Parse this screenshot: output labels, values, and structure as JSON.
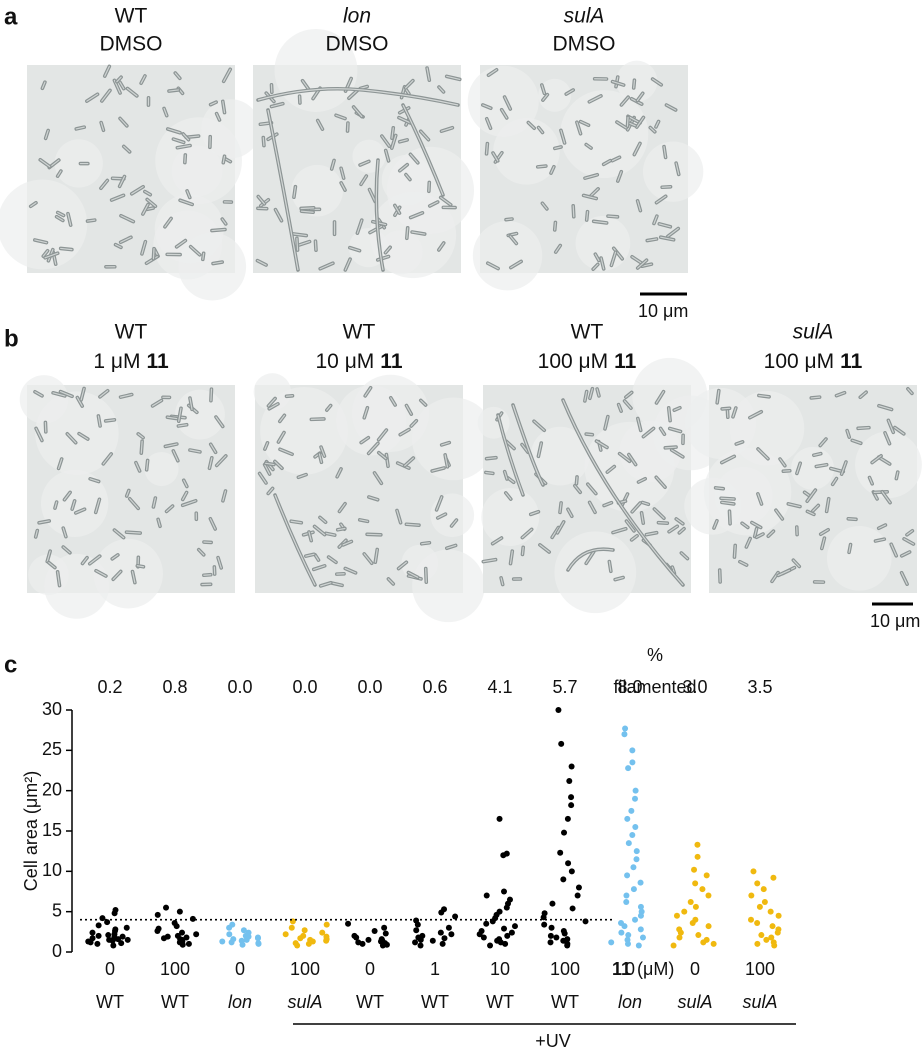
{
  "panel_a": {
    "letter": "a",
    "images": [
      {
        "strain": "WT",
        "strain_color": "#111111",
        "italic": false,
        "treatment": "DMSO"
      },
      {
        "strain": "lon",
        "strain_color": "#6ec3f0",
        "italic": true,
        "treatment": "DMSO"
      },
      {
        "strain": "sulA",
        "strain_color": "#f0b90f",
        "italic": true,
        "treatment": "DMSO"
      }
    ],
    "scale_bar": "10 μm"
  },
  "panel_b": {
    "letter": "b",
    "images": [
      {
        "strain": "WT",
        "strain_color": "#111111",
        "italic": false,
        "conc": "1 μM",
        "compound": "11"
      },
      {
        "strain": "WT",
        "strain_color": "#111111",
        "italic": false,
        "conc": "10 μM",
        "compound": "11"
      },
      {
        "strain": "WT",
        "strain_color": "#111111",
        "italic": false,
        "conc": "100 μM",
        "compound": "11"
      },
      {
        "strain": "sulA",
        "strain_color": "#f0b90f",
        "italic": true,
        "conc": "100 μM",
        "compound": "11"
      }
    ],
    "scale_bar": "10 μm"
  },
  "panel_c": {
    "letter": "c",
    "chart_data": {
      "type": "strip",
      "ylabel": "Cell area (μm²)",
      "ylim": [
        0,
        30
      ],
      "yticks": [
        0,
        5,
        10,
        15,
        20,
        25,
        30
      ],
      "threshold": 4,
      "filamented": {
        "label": [
          "%",
          "filamented"
        ],
        "values": [
          0.2,
          0.8,
          0,
          0,
          0,
          0.6,
          4.1,
          5.7,
          8.0,
          3.0,
          3.5
        ],
        "value_labels": [
          "0.2",
          "0.8",
          "0.0",
          "0.0",
          "0.0",
          "0.6",
          "4.1",
          "5.7",
          "8.0",
          "3.0",
          "3.5"
        ]
      },
      "x_label": {
        "compound": "11",
        "unit": "(μM)"
      },
      "uv_label": "+UV",
      "groups": [
        {
          "dose": "0",
          "strain": "WT",
          "color": "#000000",
          "italic": false,
          "values": [
            0.8,
            1.0,
            1.1,
            1.2,
            1.3,
            1.4,
            1.5,
            1.5,
            1.6,
            1.7,
            1.8,
            1.9,
            2.0,
            2.1,
            2.2,
            2.4,
            2.6,
            2.8,
            3.0,
            3.3,
            3.7,
            4.2,
            4.8,
            5.2
          ]
        },
        {
          "dose": "100",
          "strain": "WT",
          "color": "#000000",
          "italic": false,
          "values": [
            0.9,
            1.0,
            1.2,
            1.3,
            1.4,
            1.5,
            1.6,
            1.7,
            1.8,
            1.9,
            2.0,
            2.2,
            2.4,
            2.6,
            2.9,
            3.2,
            3.6,
            4.1,
            4.6,
            5.0,
            5.5
          ]
        },
        {
          "dose": "0",
          "strain": "lon",
          "color": "#74c1ee",
          "italic": true,
          "values": [
            0.9,
            1.0,
            1.1,
            1.2,
            1.3,
            1.4,
            1.5,
            1.6,
            1.7,
            1.8,
            1.9,
            2.0,
            2.2,
            2.4,
            2.7,
            3.0,
            3.4
          ]
        },
        {
          "dose": "100",
          "strain": "sulA",
          "color": "#f0b90f",
          "italic": true,
          "values": [
            0.8,
            1.0,
            1.1,
            1.3,
            1.4,
            1.5,
            1.6,
            1.7,
            1.9,
            2.0,
            2.2,
            2.4,
            2.7,
            3.0,
            3.4,
            3.8
          ]
        },
        {
          "dose": "0",
          "strain": "WT",
          "color": "#000000",
          "italic": false,
          "values": [
            0.8,
            0.9,
            1.0,
            1.1,
            1.2,
            1.3,
            1.4,
            1.5,
            1.6,
            1.8,
            2.0,
            2.3,
            2.6,
            3.0,
            3.5
          ]
        },
        {
          "dose": "1",
          "strain": "WT",
          "color": "#000000",
          "italic": false,
          "values": [
            0.8,
            1.0,
            1.2,
            1.4,
            1.5,
            1.7,
            1.8,
            2.0,
            2.2,
            2.4,
            2.7,
            3.0,
            3.4,
            3.9,
            4.4,
            4.9,
            5.3
          ]
        },
        {
          "dose": "10",
          "strain": "WT",
          "color": "#000000",
          "italic": false,
          "values": [
            0.8,
            1.0,
            1.2,
            1.4,
            1.6,
            1.8,
            2.0,
            2.2,
            2.4,
            2.6,
            2.9,
            3.2,
            3.5,
            3.8,
            4.2,
            4.6,
            5.0,
            5.5,
            6.0,
            6.5,
            7.0,
            7.5,
            12.0,
            12.2,
            16.5
          ]
        },
        {
          "dose": "100",
          "strain": "WT",
          "color": "#000000",
          "italic": false,
          "values": [
            0.8,
            1.0,
            1.2,
            1.4,
            1.6,
            1.8,
            2.0,
            2.3,
            2.6,
            3.0,
            3.4,
            3.8,
            4.3,
            4.8,
            5.4,
            6.0,
            7.0,
            8.0,
            9.0,
            10.0,
            11.0,
            12.3,
            14.8,
            16.5,
            18.2,
            19.2,
            21.2,
            23.0,
            25.8,
            30.0
          ]
        },
        {
          "dose": "0",
          "strain": "lon",
          "color": "#74c1ee",
          "italic": true,
          "values": [
            0.8,
            1.0,
            1.2,
            1.5,
            1.8,
            2.1,
            2.4,
            2.8,
            3.2,
            3.6,
            4.0,
            4.5,
            5.0,
            5.6,
            6.2,
            7.0,
            7.8,
            8.6,
            9.5,
            10.5,
            11.5,
            12.5,
            13.5,
            14.5,
            15.5,
            16.5,
            17.5,
            19.0,
            20.0,
            22.8,
            23.5,
            25.0,
            27.0,
            27.7
          ]
        },
        {
          "dose": "0",
          "strain": "sulA",
          "color": "#f0b90f",
          "italic": true,
          "values": [
            0.8,
            1.0,
            1.2,
            1.5,
            1.8,
            2.1,
            2.4,
            2.8,
            3.2,
            3.6,
            4.0,
            4.5,
            5.0,
            5.6,
            6.2,
            7.0,
            7.8,
            8.5,
            9.5,
            10.2,
            11.8,
            13.3
          ]
        },
        {
          "dose": "100",
          "strain": "sulA",
          "color": "#f0b90f",
          "italic": true,
          "values": [
            0.8,
            1.0,
            1.2,
            1.5,
            1.8,
            2.1,
            2.4,
            2.8,
            3.2,
            3.6,
            4.0,
            4.5,
            5.0,
            5.6,
            6.2,
            7.0,
            7.8,
            8.5,
            9.2,
            10.0
          ]
        }
      ]
    }
  }
}
